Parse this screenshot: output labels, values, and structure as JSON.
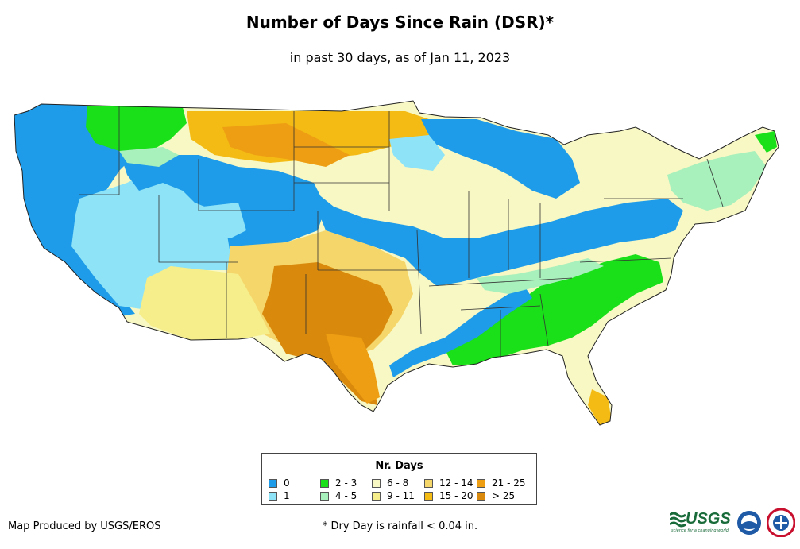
{
  "title": "Number of Days Since Rain (DSR)*",
  "subtitle": "in past 30 days, as of Jan 11, 2023",
  "legend": {
    "title": "Nr. Days",
    "items": [
      {
        "label": "0",
        "color": "#1e9be9"
      },
      {
        "label": "1",
        "color": "#8fe3f6"
      },
      {
        "label": "2 - 3",
        "color": "#19e019"
      },
      {
        "label": "4 - 5",
        "color": "#a8f0bc"
      },
      {
        "label": "6 - 8",
        "color": "#f8f8c4"
      },
      {
        "label": "9 - 11",
        "color": "#f5ee8a"
      },
      {
        "label": "12 - 14",
        "color": "#f5d66a"
      },
      {
        "label": "15 - 20",
        "color": "#f4bb14"
      },
      {
        "label": "21 - 25",
        "color": "#ee9e12"
      },
      {
        "label": "> 25",
        "color": "#d98a0c"
      }
    ]
  },
  "credit": "Map Produced by USGS/EROS",
  "footnote": "* Dry Day is rainfall < 0.04 in.",
  "logos": {
    "usgs_text": "USGS",
    "usgs_tagline": "science for a changing world"
  }
}
